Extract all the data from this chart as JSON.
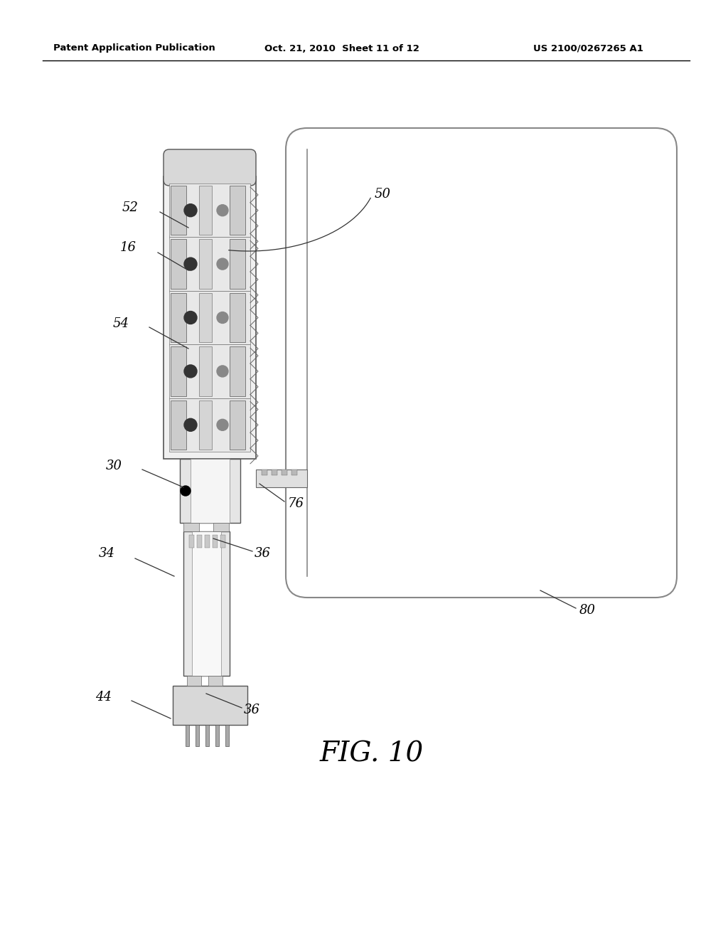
{
  "bg_color": "#ffffff",
  "header_text": "Patent Application Publication",
  "header_date": "Oct. 21, 2010  Sheet 11 of 12",
  "header_patent": "US 2100/0267265 A1",
  "fig_label": "FIG.10"
}
